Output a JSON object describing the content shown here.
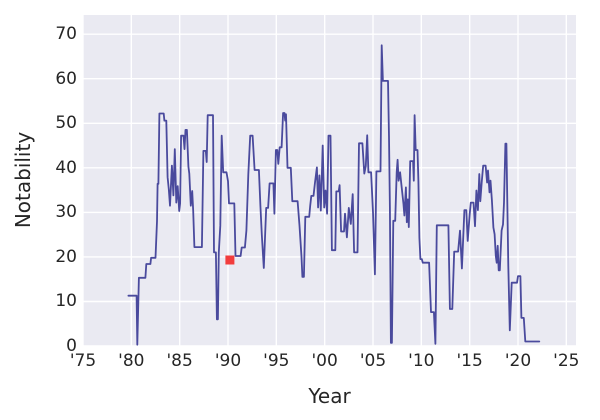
{
  "figure": {
    "plot_bg": "#eaeaf2",
    "grid_color": "#ffffff",
    "text_color": "#262626"
  },
  "chart_data": {
    "type": "line",
    "title": "",
    "xlabel": "Year",
    "ylabel": "Notability",
    "xlim": [
      1975,
      2026
    ],
    "ylim": [
      0,
      74.3
    ],
    "grid": true,
    "legend": "none",
    "x_ticks": [
      1975,
      1980,
      1985,
      1990,
      1995,
      2000,
      2005,
      2010,
      2015,
      2020,
      2025
    ],
    "x_tick_labels": [
      "'75",
      "'80",
      "'85",
      "'90",
      "'95",
      "'00",
      "'05",
      "'10",
      "'15",
      "'20",
      "'25"
    ],
    "y_ticks": [
      0,
      10,
      20,
      30,
      40,
      50,
      60,
      70
    ],
    "y_tick_labels": [
      "0",
      "10",
      "20",
      "30",
      "40",
      "50",
      "60",
      "70"
    ],
    "series": [
      {
        "name": "notability",
        "color": "#4a4a9d",
        "points": [
          [
            1979.7,
            11.3
          ],
          [
            1980.55,
            11.3
          ],
          [
            1980.62,
            0.3
          ],
          [
            1980.78,
            15.3
          ],
          [
            1981.45,
            15.3
          ],
          [
            1981.55,
            18.4
          ],
          [
            1981.97,
            18.4
          ],
          [
            1982.05,
            19.8
          ],
          [
            1982.5,
            19.8
          ],
          [
            1982.65,
            28
          ],
          [
            1982.72,
            36.4
          ],
          [
            1982.8,
            36.4
          ],
          [
            1982.9,
            52.2
          ],
          [
            1983.35,
            52.2
          ],
          [
            1983.42,
            50.6
          ],
          [
            1983.62,
            50.6
          ],
          [
            1983.75,
            37.9
          ],
          [
            1983.88,
            35.2
          ],
          [
            1984.0,
            31.5
          ],
          [
            1984.2,
            40.5
          ],
          [
            1984.35,
            33.8
          ],
          [
            1984.5,
            44.2
          ],
          [
            1984.65,
            32.2
          ],
          [
            1984.8,
            35.9
          ],
          [
            1984.95,
            30.3
          ],
          [
            1985.05,
            32
          ],
          [
            1985.15,
            47.2
          ],
          [
            1985.4,
            47.2
          ],
          [
            1985.5,
            44.2
          ],
          [
            1985.6,
            48.5
          ],
          [
            1985.75,
            48.5
          ],
          [
            1985.9,
            40.3
          ],
          [
            1986.0,
            38.7
          ],
          [
            1986.15,
            31.5
          ],
          [
            1986.3,
            34.8
          ],
          [
            1986.4,
            30.3
          ],
          [
            1986.52,
            22.2
          ],
          [
            1987.3,
            22.2
          ],
          [
            1987.45,
            43.8
          ],
          [
            1987.7,
            43.8
          ],
          [
            1987.8,
            41.3
          ],
          [
            1987.9,
            51.8
          ],
          [
            1988.45,
            51.8
          ],
          [
            1988.55,
            21
          ],
          [
            1988.75,
            21
          ],
          [
            1988.85,
            6
          ],
          [
            1988.95,
            6
          ],
          [
            1989.05,
            21
          ],
          [
            1989.2,
            27
          ],
          [
            1989.35,
            47.2
          ],
          [
            1989.5,
            39
          ],
          [
            1989.85,
            39
          ],
          [
            1990.0,
            37
          ],
          [
            1990.1,
            32
          ],
          [
            1990.65,
            32
          ],
          [
            1990.78,
            20.2
          ],
          [
            1991.3,
            20.2
          ],
          [
            1991.42,
            22.1
          ],
          [
            1991.75,
            22.1
          ],
          [
            1991.9,
            25.9
          ],
          [
            1992.1,
            38.5
          ],
          [
            1992.3,
            47.2
          ],
          [
            1992.55,
            47.2
          ],
          [
            1992.75,
            39.5
          ],
          [
            1993.2,
            39.5
          ],
          [
            1993.35,
            31.5
          ],
          [
            1993.5,
            25
          ],
          [
            1993.7,
            17.5
          ],
          [
            1993.95,
            31
          ],
          [
            1994.15,
            31
          ],
          [
            1994.3,
            36.5
          ],
          [
            1994.7,
            36.5
          ],
          [
            1994.8,
            29.7
          ],
          [
            1994.95,
            44
          ],
          [
            1995.1,
            44
          ],
          [
            1995.2,
            40.9
          ],
          [
            1995.35,
            44.6
          ],
          [
            1995.55,
            44.6
          ],
          [
            1995.7,
            52.3
          ],
          [
            1995.85,
            52.3
          ],
          [
            1995.92,
            50.6
          ],
          [
            1996.0,
            52
          ],
          [
            1996.15,
            40
          ],
          [
            1996.5,
            40
          ],
          [
            1996.65,
            32.5
          ],
          [
            1997.2,
            32.5
          ],
          [
            1997.4,
            27
          ],
          [
            1997.6,
            20
          ],
          [
            1997.7,
            15.5
          ],
          [
            1997.85,
            15.5
          ],
          [
            1998.0,
            29
          ],
          [
            1998.4,
            29
          ],
          [
            1998.5,
            31.5
          ],
          [
            1998.62,
            33.7
          ],
          [
            1998.85,
            33.7
          ],
          [
            1999.0,
            36.7
          ],
          [
            1999.2,
            40.1
          ],
          [
            1999.32,
            31.1
          ],
          [
            1999.45,
            38.3
          ],
          [
            1999.6,
            30.4
          ],
          [
            1999.8,
            45
          ],
          [
            1999.95,
            31.1
          ],
          [
            2000.1,
            34.9
          ],
          [
            2000.25,
            29.7
          ],
          [
            2000.4,
            47.2
          ],
          [
            2000.6,
            47.2
          ],
          [
            2000.75,
            21.5
          ],
          [
            2001.1,
            21.5
          ],
          [
            2001.2,
            34.7
          ],
          [
            2001.45,
            34.7
          ],
          [
            2001.55,
            36.1
          ],
          [
            2001.7,
            25.7
          ],
          [
            2002.0,
            25.7
          ],
          [
            2002.1,
            29.7
          ],
          [
            2002.3,
            24.4
          ],
          [
            2002.5,
            31
          ],
          [
            2002.7,
            27.4
          ],
          [
            2002.9,
            34.1
          ],
          [
            2003.05,
            21
          ],
          [
            2003.4,
            21
          ],
          [
            2003.55,
            45.5
          ],
          [
            2003.9,
            45.5
          ],
          [
            2004.1,
            38.7
          ],
          [
            2004.25,
            40.4
          ],
          [
            2004.4,
            47.3
          ],
          [
            2004.52,
            39
          ],
          [
            2004.8,
            39
          ],
          [
            2005.0,
            30
          ],
          [
            2005.2,
            16.1
          ],
          [
            2005.35,
            39.2
          ],
          [
            2005.78,
            39.2
          ],
          [
            2005.9,
            67.5
          ],
          [
            2006.02,
            59.5
          ],
          [
            2006.55,
            59.5
          ],
          [
            2006.65,
            46.9
          ],
          [
            2006.75,
            31.1
          ],
          [
            2006.85,
            0.7
          ],
          [
            2006.95,
            0.7
          ],
          [
            2007.1,
            28.1
          ],
          [
            2007.3,
            28.1
          ],
          [
            2007.45,
            39
          ],
          [
            2007.55,
            41.8
          ],
          [
            2007.65,
            37.1
          ],
          [
            2007.8,
            39
          ],
          [
            2007.95,
            36
          ],
          [
            2008.15,
            31.8
          ],
          [
            2008.25,
            29.3
          ],
          [
            2008.4,
            35.6
          ],
          [
            2008.5,
            27.8
          ],
          [
            2008.6,
            32.9
          ],
          [
            2008.7,
            26.7
          ],
          [
            2008.85,
            41.5
          ],
          [
            2009.15,
            41.5
          ],
          [
            2009.22,
            37.1
          ],
          [
            2009.3,
            51.8
          ],
          [
            2009.42,
            44
          ],
          [
            2009.6,
            44
          ],
          [
            2009.7,
            37
          ],
          [
            2009.8,
            24.3
          ],
          [
            2009.9,
            19.5
          ],
          [
            2010.05,
            19.5
          ],
          [
            2010.15,
            18.7
          ],
          [
            2010.8,
            18.7
          ],
          [
            2011.0,
            7.6
          ],
          [
            2011.3,
            7.6
          ],
          [
            2011.45,
            0.5
          ],
          [
            2011.6,
            27.1
          ],
          [
            2012.8,
            27.1
          ],
          [
            2012.95,
            8.3
          ],
          [
            2013.2,
            8.3
          ],
          [
            2013.4,
            21.2
          ],
          [
            2013.8,
            21.2
          ],
          [
            2014.0,
            25.9
          ],
          [
            2014.2,
            17.4
          ],
          [
            2014.45,
            30.5
          ],
          [
            2014.65,
            30.5
          ],
          [
            2014.8,
            23.6
          ],
          [
            2015.0,
            29.6
          ],
          [
            2015.12,
            32.2
          ],
          [
            2015.4,
            32.2
          ],
          [
            2015.55,
            26.9
          ],
          [
            2015.7,
            34.9
          ],
          [
            2015.85,
            30.5
          ],
          [
            2016.0,
            38.6
          ],
          [
            2016.1,
            32.5
          ],
          [
            2016.25,
            37
          ],
          [
            2016.4,
            40.5
          ],
          [
            2016.65,
            40.5
          ],
          [
            2016.8,
            36.7
          ],
          [
            2016.9,
            39.4
          ],
          [
            2017.05,
            34.5
          ],
          [
            2017.15,
            37.1
          ],
          [
            2017.3,
            32.7
          ],
          [
            2017.45,
            26.6
          ],
          [
            2017.58,
            25.1
          ],
          [
            2017.7,
            20.2
          ],
          [
            2017.8,
            18.7
          ],
          [
            2017.9,
            22.5
          ],
          [
            2018.0,
            17
          ],
          [
            2018.12,
            17
          ],
          [
            2018.3,
            25.9
          ],
          [
            2018.45,
            27.3
          ],
          [
            2018.55,
            32.2
          ],
          [
            2018.7,
            45.4
          ],
          [
            2018.8,
            45.4
          ],
          [
            2019.0,
            18
          ],
          [
            2019.15,
            3.5
          ],
          [
            2019.35,
            14.2
          ],
          [
            2019.9,
            14.2
          ],
          [
            2020.0,
            15.7
          ],
          [
            2020.25,
            15.7
          ],
          [
            2020.35,
            6.3
          ],
          [
            2020.6,
            6.3
          ],
          [
            2020.75,
            1
          ],
          [
            2022.2,
            1
          ]
        ]
      }
    ],
    "highlight_point": {
      "x": 1990.2,
      "y": 19.3,
      "marker": "square",
      "color": "#f23d3d"
    }
  }
}
